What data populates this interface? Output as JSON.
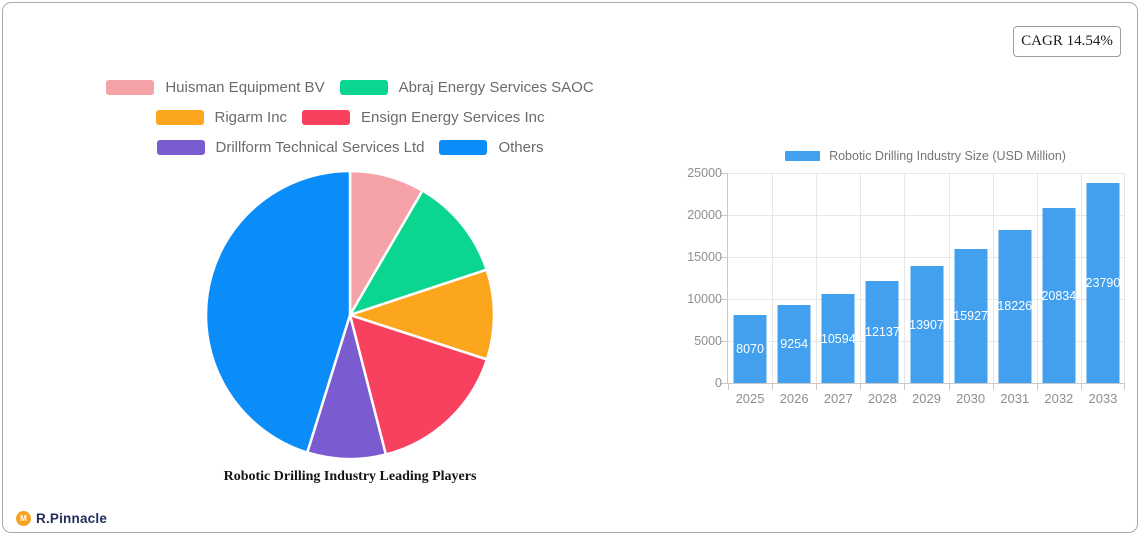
{
  "badge": {
    "cagr_label": "CAGR 14.54%"
  },
  "brand": {
    "name": "R.Pinnacle",
    "icon_glyph": "M",
    "icon_color": "#F3A224",
    "text_color": "#232e5c"
  },
  "chart_data": [
    {
      "type": "pie",
      "title": "Robotic Drilling Industry Leading Players",
      "labels": [
        "Huisman Equipment BV",
        "Abraj Energy Services SAOC",
        "Rigarm Inc",
        "Ensign Energy Services Inc",
        "Drillform Technical Services Ltd",
        "Others"
      ],
      "values": [
        8.4,
        11.5,
        10.1,
        16.0,
        8.8,
        45.2
      ],
      "values_note": "share estimated from slice angles, percent",
      "colors": [
        "#F5A3A8",
        "#0BD68F",
        "#FBA61D",
        "#F8405F",
        "#7A5BD0",
        "#0A8DF8"
      ],
      "start_angle_deg": 0,
      "direction": "clockwise",
      "legend_position": "top",
      "legend_rows": [
        [
          0,
          1
        ],
        [
          2,
          3
        ],
        [
          4,
          5
        ]
      ]
    },
    {
      "type": "bar",
      "series_label": "Robotic Drilling Industry Size (USD Million)",
      "categories": [
        "2025",
        "2026",
        "2027",
        "2028",
        "2029",
        "2030",
        "2031",
        "2032",
        "2033"
      ],
      "values": [
        8070,
        9254,
        10594,
        12137,
        13907,
        15927,
        18226,
        20834,
        23790
      ],
      "ylim": [
        0,
        25000
      ],
      "yticks": [
        0,
        5000,
        10000,
        15000,
        20000,
        25000
      ],
      "bar_color": "#42A0EE",
      "grid": true,
      "value_labels": "inside-center-white",
      "legend_position": "top"
    }
  ]
}
